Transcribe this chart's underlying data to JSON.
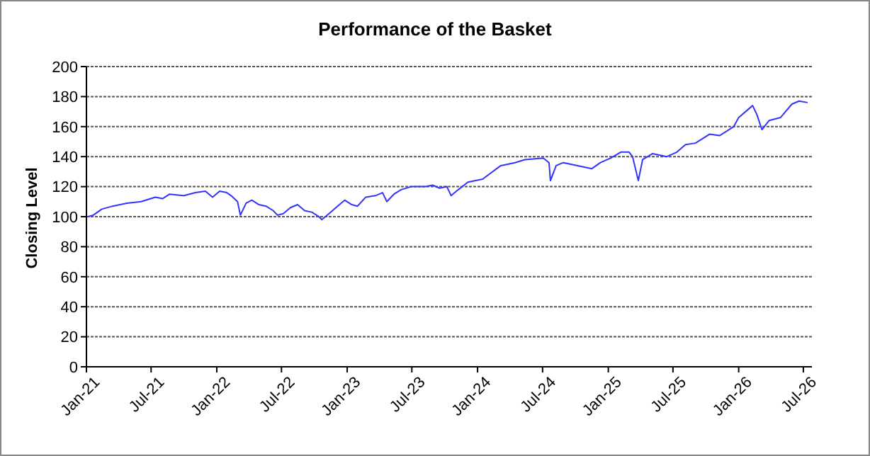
{
  "chart_data": {
    "type": "line",
    "title": "Performance of the Basket",
    "ylabel": "Closing Level",
    "x": [
      "2021-01-05",
      "2021-01-20",
      "2021-02-13",
      "2021-03-15",
      "2021-04-24",
      "2021-06-03",
      "2021-07-13",
      "2021-08-02",
      "2021-08-22",
      "2021-10-01",
      "2021-11-02",
      "2021-11-30",
      "2021-12-20",
      "2022-01-09",
      "2022-01-29",
      "2022-02-10",
      "2022-02-28",
      "2022-03-08",
      "2022-03-24",
      "2022-04-09",
      "2022-04-29",
      "2022-05-19",
      "2022-06-08",
      "2022-06-20",
      "2022-07-06",
      "2022-07-26",
      "2022-08-15",
      "2022-09-04",
      "2022-09-24",
      "2022-10-14",
      "2022-10-22",
      "2022-11-11",
      "2022-12-05",
      "2022-12-25",
      "2023-01-14",
      "2023-01-30",
      "2023-02-22",
      "2023-03-21",
      "2023-04-10",
      "2023-04-22",
      "2023-05-12",
      "2023-06-01",
      "2023-06-29",
      "2023-08-08",
      "2023-08-28",
      "2023-09-17",
      "2023-10-07",
      "2023-10-19",
      "2023-11-08",
      "2023-12-05",
      "2024-01-15",
      "2024-03-06",
      "2024-04-15",
      "2024-05-12",
      "2024-07-03",
      "2024-07-19",
      "2024-07-23",
      "2024-08-08",
      "2024-08-28",
      "2024-10-07",
      "2024-11-16",
      "2024-12-10",
      "2025-01-07",
      "2025-02-05",
      "2025-02-28",
      "2025-03-10",
      "2025-03-26",
      "2025-04-07",
      "2025-05-05",
      "2025-06-14",
      "2025-07-12",
      "2025-08-05",
      "2025-09-02",
      "2025-10-12",
      "2025-11-09",
      "2025-12-18",
      "2026-01-01",
      "2026-02-09",
      "2026-02-21",
      "2026-03-07",
      "2026-03-27",
      "2026-04-28",
      "2026-05-30",
      "2026-06-19",
      "2026-07-13"
    ],
    "series": [
      {
        "color": "#3333ff",
        "values": [
          100,
          101,
          105,
          107,
          109,
          110,
          113,
          112,
          115,
          114,
          116,
          117,
          113,
          117,
          116,
          114,
          110,
          101,
          109,
          111,
          108,
          107,
          104,
          101,
          102,
          106,
          108,
          104,
          103,
          100,
          98,
          102,
          107,
          111,
          108,
          107,
          113,
          114,
          116,
          110,
          115,
          118,
          120,
          120,
          121,
          119,
          120,
          114,
          118,
          123,
          125,
          134,
          136,
          138,
          139,
          136,
          124,
          134,
          136,
          134,
          132,
          136,
          139,
          143,
          143,
          140,
          124,
          138,
          142,
          140,
          143,
          148,
          149,
          155,
          154,
          160,
          166,
          174,
          168,
          158,
          164,
          166,
          175,
          177,
          176
        ]
      }
    ],
    "xlim": [
      "2021-01-01",
      "2026-07-25"
    ],
    "xticks": [
      {
        "value": "2021-01-01",
        "label": "Jan-21"
      },
      {
        "value": "2021-07-01",
        "label": "Jul-21"
      },
      {
        "value": "2022-01-01",
        "label": "Jan-22"
      },
      {
        "value": "2022-07-01",
        "label": "Jul-22"
      },
      {
        "value": "2023-01-01",
        "label": "Jan-23"
      },
      {
        "value": "2023-07-01",
        "label": "Jul-23"
      },
      {
        "value": "2024-01-01",
        "label": "Jan-24"
      },
      {
        "value": "2024-07-01",
        "label": "Jul-24"
      },
      {
        "value": "2025-01-01",
        "label": "Jan-25"
      },
      {
        "value": "2025-07-01",
        "label": "Jul-25"
      },
      {
        "value": "2026-01-01",
        "label": "Jan-26"
      },
      {
        "value": "2026-07-01",
        "label": "Jul-26"
      }
    ],
    "ylim": [
      0,
      200
    ],
    "yticks": [
      0,
      20,
      40,
      60,
      80,
      100,
      120,
      140,
      160,
      180,
      200
    ],
    "grid": "y",
    "marker": "none",
    "line_style": "solid"
  }
}
